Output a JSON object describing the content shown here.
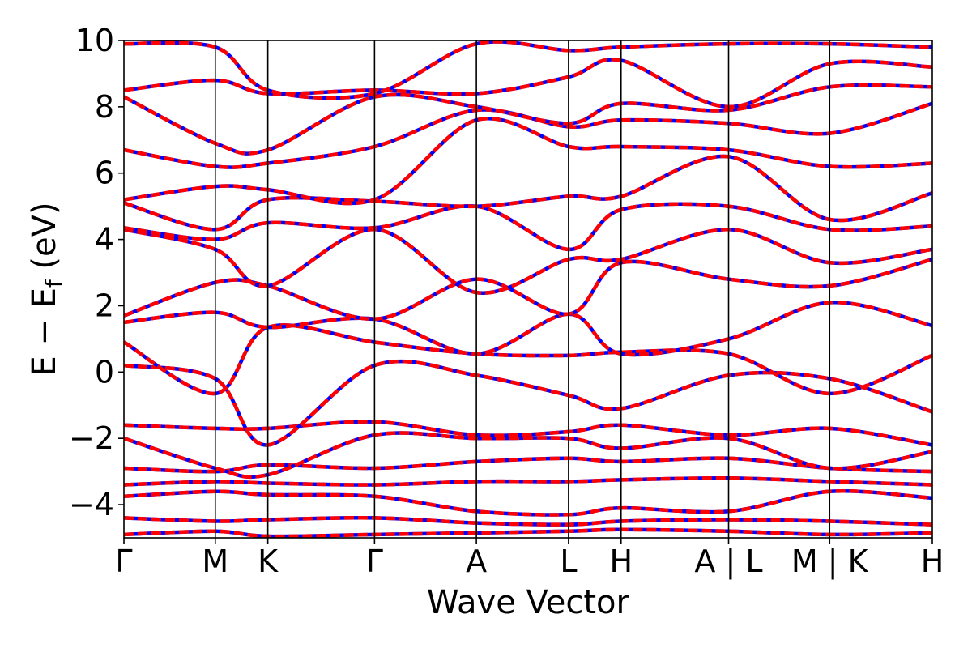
{
  "chart_data": {
    "type": "line",
    "xlabel": "Wave Vector",
    "ylabel": "E − E",
    "ylabel_sub": "f",
    "ylabel_unit": " (eV)",
    "ylim": [
      -5,
      10
    ],
    "yticks": [
      {
        "value": 10,
        "label": "10"
      },
      {
        "value": 8,
        "label": "8"
      },
      {
        "value": 6,
        "label": "6"
      },
      {
        "value": 4,
        "label": "4"
      },
      {
        "value": 2,
        "label": "2"
      },
      {
        "value": 0,
        "label": "0"
      },
      {
        "value": -2,
        "label": "−2"
      },
      {
        "value": -4,
        "label": "−4"
      }
    ],
    "xlim": [
      0,
      1
    ],
    "kpoints": [
      {
        "x": 0.0,
        "label": "Γ"
      },
      {
        "x": 0.113,
        "label": "M"
      },
      {
        "x": 0.178,
        "label": "K"
      },
      {
        "x": 0.31,
        "label": "Γ"
      },
      {
        "x": 0.436,
        "label": "A"
      },
      {
        "x": 0.55,
        "label": "L"
      },
      {
        "x": 0.615,
        "label": "H"
      },
      {
        "x": 0.748,
        "label": "A | L"
      },
      {
        "x": 0.873,
        "label": "M | K"
      },
      {
        "x": 1.0,
        "label": "H"
      }
    ],
    "grid": false,
    "series_styles": [
      {
        "color": "#0000ff",
        "style": "solid"
      },
      {
        "color": "#ff0000",
        "style": "dashed"
      }
    ],
    "bands": [
      {
        "x": [
          0,
          0.113,
          0.178,
          0.31,
          0.436,
          0.55,
          0.615,
          0.748,
          0.873,
          1
        ],
        "y": [
          -4.9,
          -4.8,
          -4.95,
          -4.9,
          -4.85,
          -4.8,
          -4.75,
          -4.8,
          -4.9,
          -4.85
        ]
      },
      {
        "x": [
          0,
          0.113,
          0.178,
          0.31,
          0.436,
          0.55,
          0.615,
          0.748,
          0.873,
          1
        ],
        "y": [
          -4.4,
          -4.5,
          -4.45,
          -4.4,
          -4.55,
          -4.6,
          -4.5,
          -4.45,
          -4.5,
          -4.6
        ]
      },
      {
        "x": [
          0,
          0.113,
          0.178,
          0.31,
          0.436,
          0.55,
          0.615,
          0.748,
          0.873,
          1
        ],
        "y": [
          -3.75,
          -3.6,
          -3.7,
          -3.75,
          -4.2,
          -4.3,
          -4.1,
          -4.2,
          -3.6,
          -3.8
        ]
      },
      {
        "x": [
          0,
          0.113,
          0.178,
          0.31,
          0.436,
          0.55,
          0.615,
          0.748,
          0.873,
          1
        ],
        "y": [
          -3.4,
          -3.3,
          -3.35,
          -3.4,
          -3.3,
          -3.3,
          -3.25,
          -3.2,
          -3.3,
          -3.4
        ]
      },
      {
        "x": [
          0,
          0.113,
          0.178,
          0.31,
          0.436,
          0.55,
          0.615,
          0.748,
          0.873,
          1
        ],
        "y": [
          -2.9,
          -3.0,
          -2.8,
          -2.9,
          -2.7,
          -2.6,
          -2.7,
          -2.6,
          -2.9,
          -3.0
        ]
      },
      {
        "x": [
          0,
          0.113,
          0.178,
          0.31,
          0.436,
          0.55,
          0.615,
          0.748,
          0.873,
          1
        ],
        "y": [
          -2.0,
          -2.9,
          -3.1,
          -1.9,
          -2.0,
          -2.0,
          -2.3,
          -2.0,
          -2.9,
          -2.4
        ]
      },
      {
        "x": [
          0,
          0.113,
          0.178,
          0.31,
          0.436,
          0.55,
          0.615,
          0.748,
          0.873,
          1
        ],
        "y": [
          -1.6,
          -1.7,
          -1.7,
          -1.5,
          -1.9,
          -1.8,
          -1.6,
          -1.9,
          -1.7,
          -2.2
        ]
      },
      {
        "x": [
          0,
          0.113,
          0.178,
          0.31,
          0.436,
          0.55,
          0.615,
          0.748,
          0.873,
          1
        ],
        "y": [
          0.2,
          -0.2,
          -2.2,
          0.2,
          -0.1,
          -0.7,
          -1.1,
          -0.1,
          -0.2,
          -1.2
        ]
      },
      {
        "x": [
          0,
          0.113,
          0.178,
          0.31,
          0.436,
          0.55,
          0.615,
          0.748,
          0.873,
          1
        ],
        "y": [
          0.9,
          -0.65,
          1.35,
          0.9,
          0.55,
          0.5,
          0.6,
          0.55,
          -0.65,
          0.5
        ]
      },
      {
        "x": [
          0,
          0.113,
          0.178,
          0.31,
          0.436,
          0.55,
          0.615,
          0.748,
          0.873,
          1
        ],
        "y": [
          1.5,
          1.8,
          1.35,
          1.6,
          0.55,
          1.75,
          0.55,
          1.0,
          2.1,
          1.4
        ]
      },
      {
        "x": [
          0,
          0.113,
          0.178,
          0.31,
          0.436,
          0.55,
          0.615,
          0.748,
          0.873,
          1
        ],
        "y": [
          1.7,
          2.7,
          2.6,
          1.6,
          2.8,
          1.75,
          3.3,
          2.8,
          2.6,
          3.4
        ]
      },
      {
        "x": [
          0,
          0.113,
          0.178,
          0.31,
          0.436,
          0.55,
          0.615,
          0.748,
          0.873,
          1
        ],
        "y": [
          4.3,
          3.7,
          2.6,
          4.3,
          2.4,
          3.4,
          3.4,
          4.3,
          3.3,
          3.7
        ]
      },
      {
        "x": [
          0,
          0.113,
          0.178,
          0.31,
          0.436,
          0.55,
          0.615,
          0.748,
          0.873,
          1
        ],
        "y": [
          4.35,
          4.0,
          4.5,
          4.35,
          5.0,
          3.7,
          4.9,
          5.0,
          4.3,
          4.4
        ]
      },
      {
        "x": [
          0,
          0.113,
          0.178,
          0.31,
          0.436,
          0.55,
          0.615,
          0.748,
          0.873,
          1
        ],
        "y": [
          5.1,
          4.3,
          5.2,
          5.15,
          5.0,
          5.3,
          5.3,
          6.5,
          4.6,
          5.4
        ]
      },
      {
        "x": [
          0,
          0.113,
          0.178,
          0.31,
          0.436,
          0.55,
          0.615,
          0.748,
          0.873,
          1
        ],
        "y": [
          5.2,
          5.6,
          5.5,
          5.2,
          7.6,
          6.8,
          6.8,
          6.7,
          6.2,
          6.3
        ]
      },
      {
        "x": [
          0,
          0.113,
          0.178,
          0.31,
          0.436,
          0.55,
          0.615,
          0.748,
          0.873,
          1
        ],
        "y": [
          6.7,
          6.2,
          6.3,
          6.8,
          7.9,
          7.4,
          7.6,
          7.5,
          7.2,
          8.1
        ]
      },
      {
        "x": [
          0,
          0.113,
          0.178,
          0.31,
          0.436,
          0.55,
          0.615,
          0.748,
          0.873,
          1
        ],
        "y": [
          8.3,
          6.9,
          6.7,
          8.3,
          8.0,
          7.5,
          8.1,
          7.9,
          8.6,
          8.6
        ]
      },
      {
        "x": [
          0,
          0.113,
          0.178,
          0.31,
          0.436,
          0.55,
          0.615,
          0.748,
          0.873,
          1
        ],
        "y": [
          8.5,
          8.8,
          8.4,
          8.5,
          8.4,
          8.9,
          9.4,
          8.0,
          9.3,
          9.2
        ]
      },
      {
        "x": [
          0,
          0.113,
          0.178,
          0.31,
          0.436,
          0.55,
          0.615,
          0.748,
          0.873,
          1
        ],
        "y": [
          9.9,
          9.8,
          8.5,
          8.4,
          9.9,
          9.7,
          9.8,
          9.9,
          9.9,
          9.8
        ]
      }
    ]
  }
}
